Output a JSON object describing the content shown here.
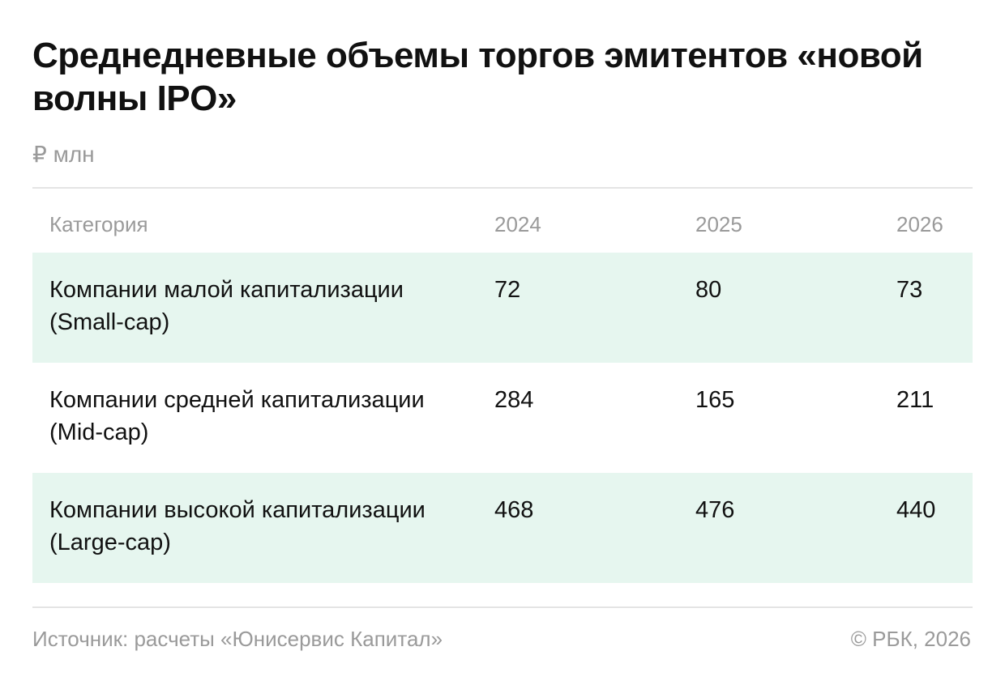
{
  "chart_data": {
    "type": "table",
    "title": "Среднедневные объемы торгов эмитентов «новой волны IPO»",
    "unit": "₽ млн",
    "columns": [
      "Категория",
      "2024",
      "2025",
      "2026"
    ],
    "rows": [
      {
        "category": "Компании малой капитализации (Small-cap)",
        "values": [
          "72",
          "80",
          "73"
        ]
      },
      {
        "category": "Компании средней капитализации (Mid-cap)",
        "values": [
          "284",
          "165",
          "211"
        ]
      },
      {
        "category": "Компании высокой капитализации (Large-cap)",
        "values": [
          "468",
          "476",
          "440"
        ]
      }
    ],
    "source": "Источник: расчеты «Юнисервис Капитал»",
    "credit": "© РБК, 2026",
    "row_highlight_color": "#e6f6ef"
  }
}
